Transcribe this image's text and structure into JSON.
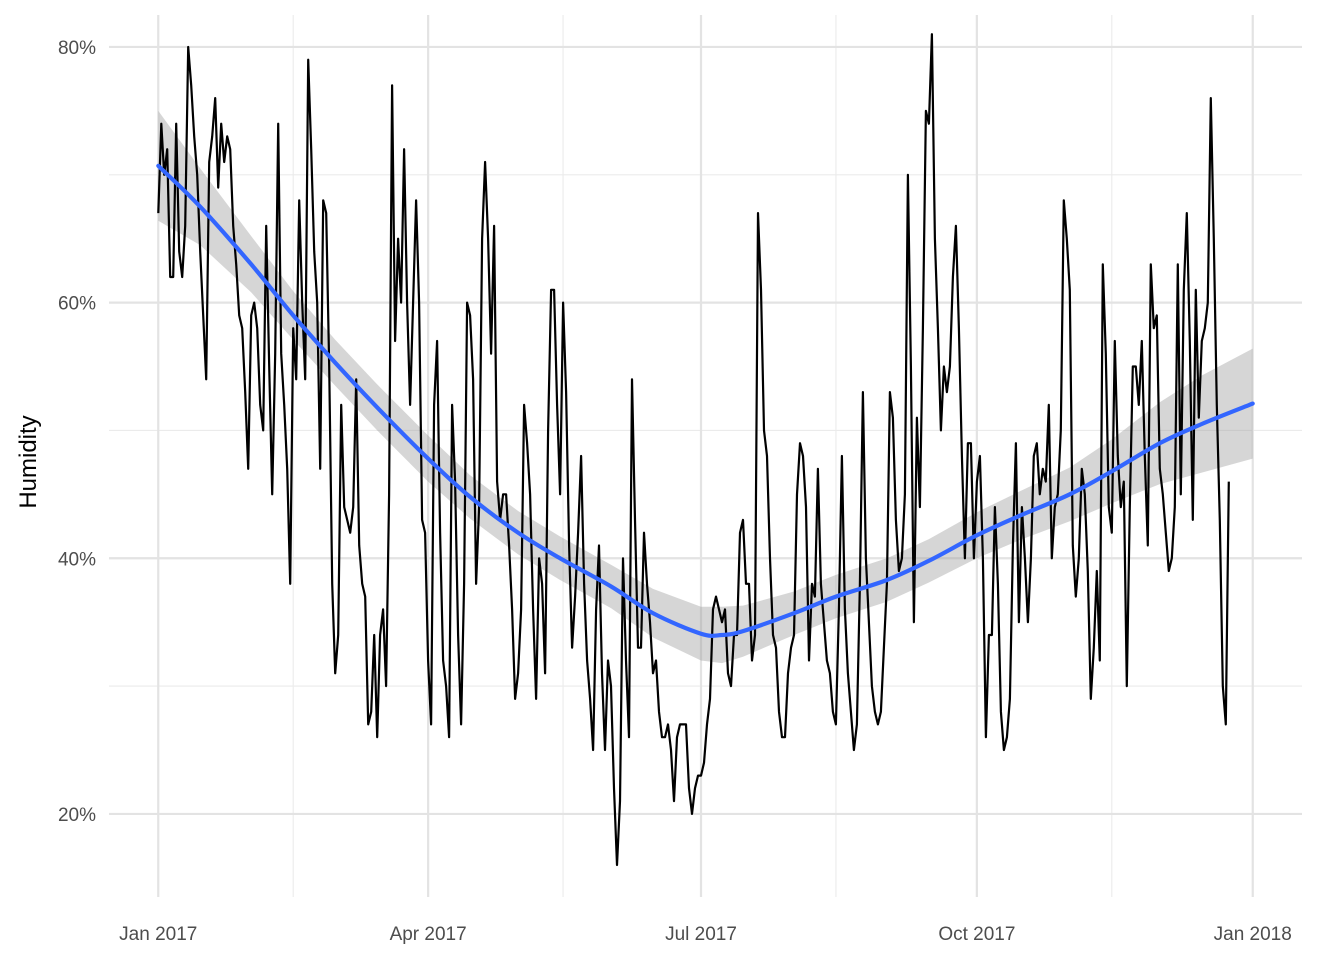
{
  "chart_data": {
    "type": "line",
    "title": "",
    "xlabel": "",
    "ylabel": "Humidity",
    "x_range": [
      "2017-01-01",
      "2018-01-01"
    ],
    "y_range": [
      0.135,
      0.825
    ],
    "x_ticks": [
      {
        "date": "2017-01-01",
        "label": "Jan 2017"
      },
      {
        "date": "2017-04-01",
        "label": "Apr 2017"
      },
      {
        "date": "2017-07-01",
        "label": "Jul 2017"
      },
      {
        "date": "2017-10-01",
        "label": "Oct 2017"
      },
      {
        "date": "2018-01-01",
        "label": "Jan 2018"
      }
    ],
    "x_minor_ticks": [
      "2017-02-15",
      "2017-05-16",
      "2017-08-15",
      "2017-11-15"
    ],
    "y_ticks": [
      {
        "value": 0.2,
        "label": "20%"
      },
      {
        "value": 0.4,
        "label": "40%"
      },
      {
        "value": 0.6,
        "label": "60%"
      },
      {
        "value": 0.8,
        "label": "80%"
      }
    ],
    "y_minor_ticks": [
      0.3,
      0.5,
      0.7
    ],
    "grid": true,
    "legend": "none",
    "series": [
      {
        "kind": "line",
        "color": "#000000",
        "start": "2017-01-01",
        "step_days": 1,
        "values": [
          0.67,
          0.74,
          0.7,
          0.72,
          0.62,
          0.62,
          0.74,
          0.64,
          0.62,
          0.66,
          0.8,
          0.77,
          0.73,
          0.7,
          0.64,
          0.59,
          0.54,
          0.71,
          0.73,
          0.76,
          0.69,
          0.74,
          0.71,
          0.73,
          0.72,
          0.66,
          0.63,
          0.59,
          0.58,
          0.53,
          0.47,
          0.59,
          0.6,
          0.58,
          0.52,
          0.5,
          0.66,
          0.55,
          0.45,
          0.56,
          0.74,
          0.56,
          0.52,
          0.47,
          0.38,
          0.58,
          0.54,
          0.68,
          0.6,
          0.54,
          0.79,
          0.72,
          0.64,
          0.6,
          0.47,
          0.68,
          0.67,
          0.55,
          0.38,
          0.31,
          0.34,
          0.52,
          0.44,
          0.43,
          0.42,
          0.44,
          0.54,
          0.41,
          0.38,
          0.37,
          0.27,
          0.28,
          0.34,
          0.26,
          0.34,
          0.36,
          0.3,
          0.45,
          0.77,
          0.57,
          0.65,
          0.6,
          0.72,
          0.6,
          0.52,
          0.6,
          0.68,
          0.6,
          0.43,
          0.42,
          0.32,
          0.27,
          0.52,
          0.57,
          0.42,
          0.32,
          0.3,
          0.26,
          0.52,
          0.46,
          0.34,
          0.27,
          0.38,
          0.6,
          0.59,
          0.54,
          0.38,
          0.44,
          0.65,
          0.71,
          0.65,
          0.56,
          0.66,
          0.46,
          0.43,
          0.45,
          0.45,
          0.41,
          0.36,
          0.29,
          0.31,
          0.36,
          0.52,
          0.49,
          0.45,
          0.36,
          0.29,
          0.4,
          0.38,
          0.31,
          0.5,
          0.61,
          0.61,
          0.52,
          0.45,
          0.6,
          0.53,
          0.41,
          0.33,
          0.37,
          0.42,
          0.48,
          0.38,
          0.32,
          0.29,
          0.25,
          0.36,
          0.41,
          0.31,
          0.25,
          0.32,
          0.3,
          0.22,
          0.16,
          0.21,
          0.4,
          0.32,
          0.26,
          0.54,
          0.43,
          0.33,
          0.33,
          0.42,
          0.38,
          0.35,
          0.31,
          0.32,
          0.28,
          0.26,
          0.26,
          0.27,
          0.25,
          0.21,
          0.26,
          0.27,
          0.27,
          0.27,
          0.22,
          0.2,
          0.22,
          0.23,
          0.23,
          0.24,
          0.27,
          0.29,
          0.36,
          0.37,
          0.36,
          0.35,
          0.36,
          0.31,
          0.3,
          0.34,
          0.34,
          0.42,
          0.43,
          0.38,
          0.38,
          0.32,
          0.34,
          0.67,
          0.61,
          0.5,
          0.48,
          0.4,
          0.34,
          0.33,
          0.28,
          0.26,
          0.26,
          0.31,
          0.33,
          0.34,
          0.45,
          0.49,
          0.48,
          0.44,
          0.32,
          0.38,
          0.37,
          0.47,
          0.38,
          0.35,
          0.32,
          0.31,
          0.28,
          0.27,
          0.36,
          0.48,
          0.36,
          0.31,
          0.28,
          0.25,
          0.27,
          0.38,
          0.53,
          0.4,
          0.35,
          0.3,
          0.28,
          0.27,
          0.28,
          0.33,
          0.38,
          0.53,
          0.51,
          0.43,
          0.39,
          0.4,
          0.45,
          0.7,
          0.55,
          0.35,
          0.51,
          0.44,
          0.58,
          0.75,
          0.74,
          0.81,
          0.65,
          0.58,
          0.5,
          0.55,
          0.53,
          0.55,
          0.62,
          0.66,
          0.58,
          0.48,
          0.4,
          0.49,
          0.49,
          0.4,
          0.46,
          0.48,
          0.4,
          0.26,
          0.34,
          0.34,
          0.44,
          0.38,
          0.28,
          0.25,
          0.26,
          0.29,
          0.41,
          0.49,
          0.35,
          0.44,
          0.4,
          0.35,
          0.4,
          0.48,
          0.49,
          0.45,
          0.47,
          0.46,
          0.52,
          0.4,
          0.44,
          0.45,
          0.5,
          0.68,
          0.65,
          0.61,
          0.41,
          0.37,
          0.4,
          0.47,
          0.45,
          0.39,
          0.29,
          0.33,
          0.39,
          0.32,
          0.63,
          0.56,
          0.44,
          0.42,
          0.57,
          0.48,
          0.44,
          0.46,
          0.3,
          0.44,
          0.55,
          0.55,
          0.52,
          0.57,
          0.48,
          0.41,
          0.63,
          0.58,
          0.59,
          0.47,
          0.45,
          0.42,
          0.39,
          0.4,
          0.44,
          0.63,
          0.45,
          0.61,
          0.67,
          0.57,
          0.43,
          0.61,
          0.51,
          0.57,
          0.58,
          0.6,
          0.76,
          0.65,
          0.52,
          0.43,
          0.3,
          0.27,
          0.46
        ]
      },
      {
        "kind": "smooth",
        "color": "#3366FF",
        "band_color": "#999999",
        "points": [
          {
            "date": "2017-01-01",
            "fit": 0.707,
            "lower": 0.664,
            "upper": 0.75
          },
          {
            "date": "2017-01-15",
            "fit": 0.675,
            "lower": 0.645,
            "upper": 0.705
          },
          {
            "date": "2017-02-01",
            "fit": 0.63,
            "lower": 0.608,
            "upper": 0.652
          },
          {
            "date": "2017-02-15",
            "fit": 0.59,
            "lower": 0.571,
            "upper": 0.609
          },
          {
            "date": "2017-03-01",
            "fit": 0.553,
            "lower": 0.535,
            "upper": 0.571
          },
          {
            "date": "2017-03-15",
            "fit": 0.518,
            "lower": 0.5,
            "upper": 0.536
          },
          {
            "date": "2017-04-01",
            "fit": 0.478,
            "lower": 0.46,
            "upper": 0.496
          },
          {
            "date": "2017-04-15",
            "fit": 0.448,
            "lower": 0.431,
            "upper": 0.465
          },
          {
            "date": "2017-05-01",
            "fit": 0.42,
            "lower": 0.403,
            "upper": 0.437
          },
          {
            "date": "2017-05-15",
            "fit": 0.4,
            "lower": 0.383,
            "upper": 0.417
          },
          {
            "date": "2017-06-01",
            "fit": 0.378,
            "lower": 0.361,
            "upper": 0.395
          },
          {
            "date": "2017-06-15",
            "fit": 0.357,
            "lower": 0.338,
            "upper": 0.376
          },
          {
            "date": "2017-07-01",
            "fit": 0.341,
            "lower": 0.32,
            "upper": 0.362
          },
          {
            "date": "2017-07-08",
            "fit": 0.34,
            "lower": 0.318,
            "upper": 0.362
          },
          {
            "date": "2017-07-15",
            "fit": 0.343,
            "lower": 0.323,
            "upper": 0.363
          },
          {
            "date": "2017-08-01",
            "fit": 0.357,
            "lower": 0.34,
            "upper": 0.374
          },
          {
            "date": "2017-08-15",
            "fit": 0.37,
            "lower": 0.353,
            "upper": 0.387
          },
          {
            "date": "2017-09-01",
            "fit": 0.383,
            "lower": 0.366,
            "upper": 0.4
          },
          {
            "date": "2017-09-15",
            "fit": 0.398,
            "lower": 0.381,
            "upper": 0.415
          },
          {
            "date": "2017-10-01",
            "fit": 0.418,
            "lower": 0.4,
            "upper": 0.436
          },
          {
            "date": "2017-10-15",
            "fit": 0.433,
            "lower": 0.414,
            "upper": 0.452
          },
          {
            "date": "2017-11-01",
            "fit": 0.45,
            "lower": 0.429,
            "upper": 0.471
          },
          {
            "date": "2017-11-15",
            "fit": 0.468,
            "lower": 0.443,
            "upper": 0.493
          },
          {
            "date": "2017-12-01",
            "fit": 0.49,
            "lower": 0.458,
            "upper": 0.522
          },
          {
            "date": "2017-12-15",
            "fit": 0.505,
            "lower": 0.467,
            "upper": 0.543
          },
          {
            "date": "2018-01-01",
            "fit": 0.521,
            "lower": 0.478,
            "upper": 0.564
          }
        ]
      }
    ]
  }
}
